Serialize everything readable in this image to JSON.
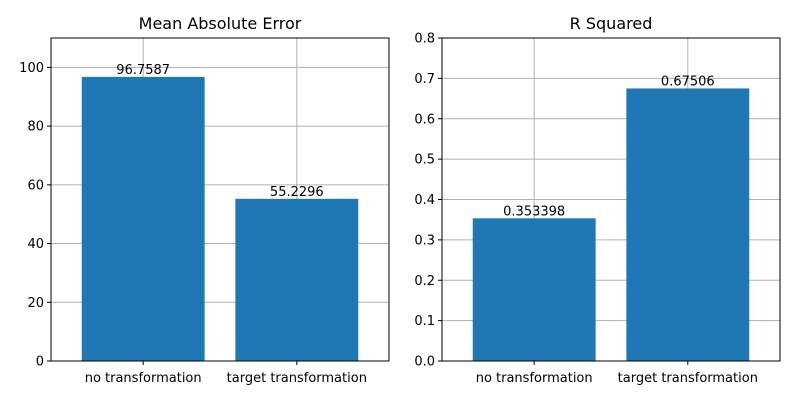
{
  "chart_data": [
    {
      "type": "bar",
      "title": "Mean Absolute Error",
      "categories": [
        "no transformation",
        "target transformation"
      ],
      "values": [
        96.7587,
        55.2296
      ],
      "data_labels": [
        "96.7587",
        "55.2296"
      ],
      "xlabel": "",
      "ylabel": "",
      "ylim": [
        0,
        110
      ],
      "yticks": [
        0,
        20,
        40,
        60,
        80,
        100
      ],
      "ytick_labels": [
        "0",
        "20",
        "40",
        "60",
        "80",
        "100"
      ],
      "grid": true,
      "bar_color": "#1f77b4"
    },
    {
      "type": "bar",
      "title": "R Squared",
      "categories": [
        "no transformation",
        "target transformation"
      ],
      "values": [
        0.353398,
        0.67506
      ],
      "data_labels": [
        "0.353398",
        "0.67506"
      ],
      "xlabel": "",
      "ylabel": "",
      "ylim": [
        0,
        0.8
      ],
      "yticks": [
        0,
        0.1,
        0.2,
        0.3,
        0.4,
        0.5,
        0.6,
        0.7,
        0.8
      ],
      "ytick_labels": [
        "0.0",
        "0.1",
        "0.2",
        "0.3",
        "0.4",
        "0.5",
        "0.6",
        "0.7",
        "0.8"
      ],
      "grid": true,
      "bar_color": "#1f77b4"
    }
  ]
}
